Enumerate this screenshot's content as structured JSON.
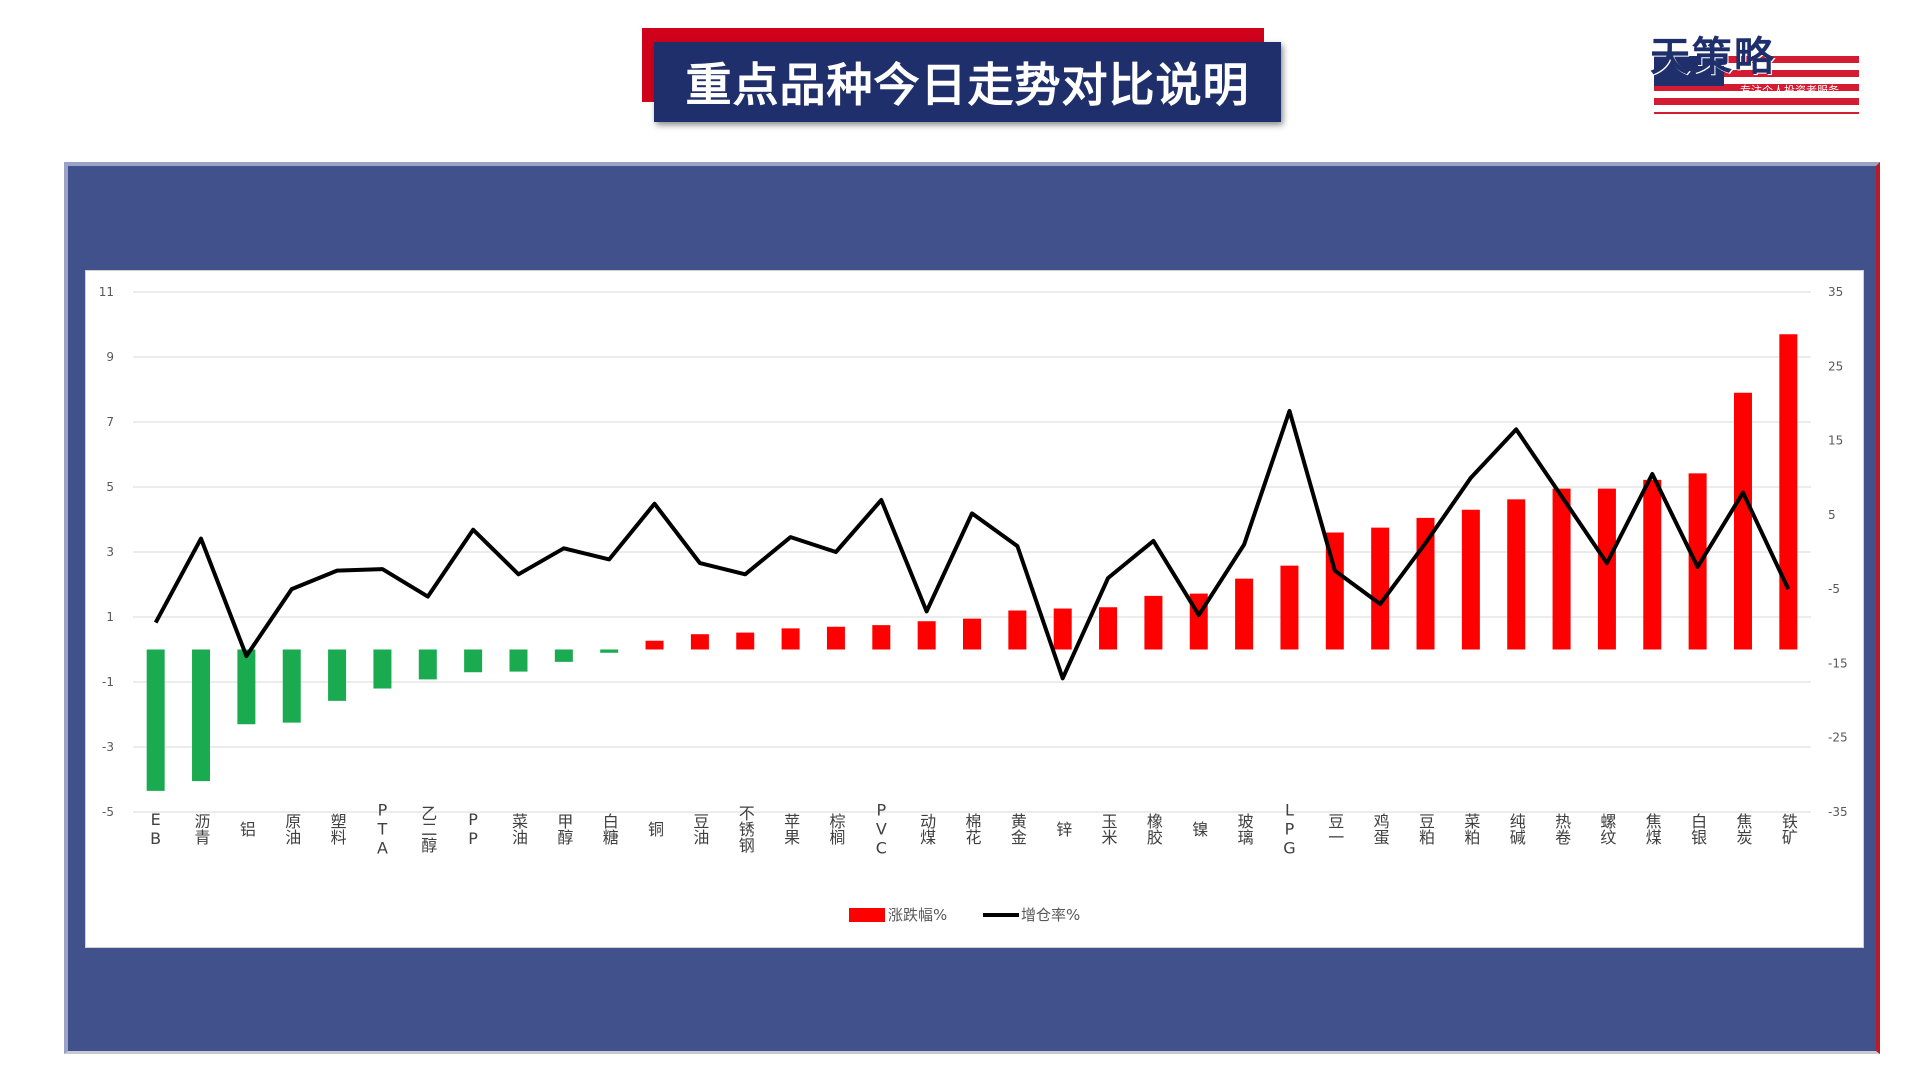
{
  "header": {
    "title": "重点品种今日走势对比说明"
  },
  "logo": {
    "brand": "天策略",
    "tagline": "专注个人投资者服务"
  },
  "colors": {
    "rise": "#ff0000",
    "fall": "#1aaa4f",
    "line": "#000000",
    "panel": "#40518c",
    "title_bg": "#1f2f6b",
    "title_accent": "#d0021b"
  },
  "chart_data": {
    "type": "bar",
    "categories": [
      "EB",
      "沥青",
      "铝",
      "原油",
      "塑料",
      "PTA",
      "乙二醇",
      "PP",
      "菜油",
      "甲醇",
      "白糖",
      "铜",
      "豆油",
      "不锈钢",
      "苹果",
      "棕榈",
      "PVC",
      "动煤",
      "棉花",
      "黄金",
      "锌",
      "玉米",
      "橡胶",
      "镍",
      "玻璃",
      "LPG",
      "豆一",
      "鸡蛋",
      "豆粕",
      "菜粕",
      "纯碱",
      "热卷",
      "螺纹",
      "焦煤",
      "白银",
      "焦炭",
      "铁矿"
    ],
    "series": [
      {
        "name": "涨跌幅%",
        "type": "bar",
        "axis": "left",
        "values": [
          -4.35,
          -4.05,
          -2.3,
          -2.25,
          -1.58,
          -1.2,
          -0.92,
          -0.7,
          -0.68,
          -0.38,
          -0.1,
          0.27,
          0.47,
          0.52,
          0.65,
          0.7,
          0.75,
          0.87,
          0.95,
          1.2,
          1.26,
          1.3,
          1.65,
          1.72,
          2.18,
          2.58,
          3.6,
          3.75,
          4.05,
          4.3,
          4.62,
          4.95,
          4.95,
          5.22,
          5.42,
          7.9,
          9.7
        ]
      },
      {
        "name": "增仓率%",
        "type": "line",
        "axis": "right",
        "values": [
          -9.5,
          1.8,
          -14,
          -5,
          -2.5,
          -2.3,
          -6,
          3,
          -3,
          0.5,
          -1,
          6.5,
          -1.5,
          -3,
          2,
          0,
          7,
          -8,
          5.2,
          0.8,
          -17,
          -3.5,
          1.5,
          -8.5,
          1,
          19,
          -2.5,
          -7,
          1.2,
          10,
          16.5,
          7.5,
          -1.5,
          10.5,
          -2,
          8,
          -5
        ]
      }
    ],
    "left_axis": {
      "min": -5,
      "max": 11,
      "ticks": [
        "11",
        "9",
        "7",
        "5",
        "3",
        "1",
        "-1",
        "-3",
        "-5"
      ]
    },
    "right_axis": {
      "min": -35,
      "max": 35,
      "ticks": [
        "35",
        "25",
        "15",
        "5",
        "-5",
        "-15",
        "-25",
        "-35"
      ]
    },
    "legend": {
      "position": "bottom-center"
    },
    "grid": true
  }
}
